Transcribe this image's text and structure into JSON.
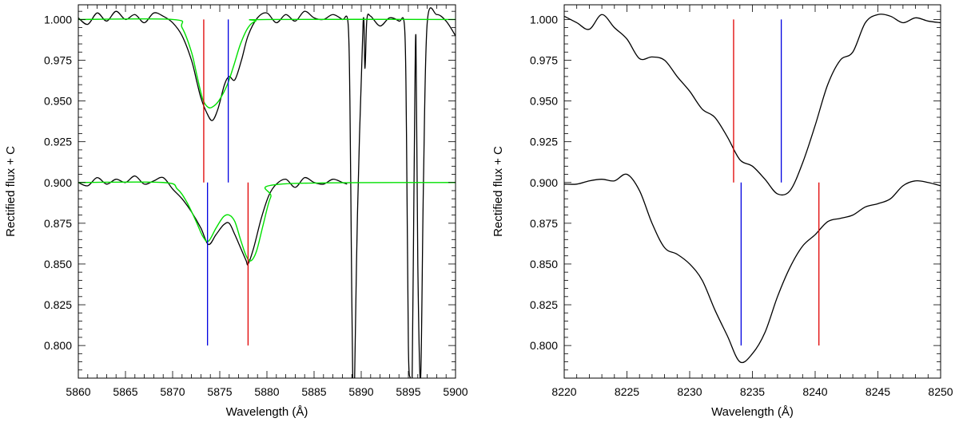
{
  "chart_data": [
    {
      "type": "line",
      "panel": "left",
      "xlabel": "Wavelength (Å)",
      "ylabel": "Rectified flux + C",
      "xlim": [
        5860,
        5900
      ],
      "ylim": [
        0.78,
        1.009
      ],
      "xticks": [
        5860,
        5865,
        5870,
        5875,
        5880,
        5885,
        5890,
        5895,
        5900
      ],
      "xtick_labels": [
        "5860",
        "5865",
        "5870",
        "5875",
        "5880",
        "5885",
        "5890",
        "5895",
        "5900"
      ],
      "yticks": [
        0.8,
        0.825,
        0.85,
        0.875,
        0.9,
        0.925,
        0.95,
        0.975,
        1.0
      ],
      "ytick_labels": [
        "0.800",
        "0.825",
        "0.850",
        "0.875",
        "0.900",
        "0.925",
        "0.950",
        "0.975",
        "1.000"
      ],
      "grid": false,
      "series": [
        {
          "color": "#000000",
          "kind": "observed",
          "x": [
            5860,
            5861,
            5862,
            5863,
            5864,
            5865,
            5866,
            5867,
            5868,
            5869,
            5870,
            5871,
            5872,
            5872.6,
            5873,
            5873.6,
            5874.2,
            5874.8,
            5875.5,
            5876,
            5876.6,
            5877.3,
            5878,
            5879,
            5880,
            5881,
            5882,
            5883,
            5884,
            5885,
            5886,
            5887,
            5888,
            5888.6,
            5888.8,
            5888.95,
            5889.1,
            5889.3,
            5889.6,
            5890.2,
            5890.4,
            5890.6,
            5891,
            5892,
            5893,
            5894,
            5894.6,
            5894.8,
            5895,
            5895.2,
            5895.4,
            5895.6,
            5895.8,
            5896,
            5896.3,
            5896.6,
            5897,
            5898,
            5899,
            5900
          ],
          "y": [
            1.001,
            0.997,
            1.004,
            0.999,
            1.005,
            1.0,
            1.003,
            0.998,
            1.004,
            1.002,
            0.998,
            0.99,
            0.975,
            0.961,
            0.952,
            0.943,
            0.938,
            0.945,
            0.96,
            0.965,
            0.963,
            0.975,
            0.99,
            1.001,
            1.004,
            0.998,
            1.003,
            0.999,
            1.005,
            1.001,
            1.0,
            1.003,
            1.0,
            0.998,
            0.95,
            0.86,
            0.78,
            0.78,
            0.88,
            0.998,
            0.97,
            1.0,
            1.002,
            0.996,
            1.001,
            0.999,
            0.995,
            0.93,
            0.8,
            0.78,
            0.78,
            0.9,
            0.99,
            0.85,
            0.78,
            0.9,
            0.998,
            1.003,
            0.999,
            0.99
          ]
        },
        {
          "color": "#00e000",
          "kind": "model",
          "x": [
            5860,
            5870,
            5871,
            5872,
            5872.6,
            5873.2,
            5873.8,
            5874.4,
            5875,
            5875.8,
            5876.5,
            5877.2,
            5878,
            5878.8,
            5880,
            5900
          ],
          "y": [
            1.0,
            1.0,
            0.995,
            0.98,
            0.965,
            0.951,
            0.946,
            0.947,
            0.951,
            0.96,
            0.972,
            0.985,
            0.995,
            0.999,
            1.0,
            1.0
          ]
        },
        {
          "color": "#000000",
          "kind": "observed",
          "x": [
            5860,
            5861,
            5862,
            5863,
            5864,
            5865,
            5866,
            5867,
            5868,
            5869,
            5870,
            5871,
            5872,
            5873,
            5873.8,
            5874.6,
            5875.4,
            5876,
            5876.6,
            5877.2,
            5877.8,
            5878,
            5878.6,
            5879.4,
            5880.2,
            5881,
            5882,
            5883,
            5884,
            5885,
            5886,
            5887,
            5888,
            5888.5
          ],
          "y": [
            0.9,
            0.898,
            0.903,
            0.899,
            0.902,
            0.9,
            0.904,
            0.899,
            0.901,
            0.903,
            0.896,
            0.89,
            0.882,
            0.872,
            0.862,
            0.868,
            0.874,
            0.875,
            0.868,
            0.86,
            0.852,
            0.85,
            0.86,
            0.878,
            0.892,
            0.899,
            0.902,
            0.897,
            0.903,
            0.9,
            0.899,
            0.902,
            0.9,
            0.899
          ]
        },
        {
          "color": "#00e000",
          "kind": "model",
          "x": [
            5860,
            5869,
            5870.5,
            5871.5,
            5872.5,
            5873.2,
            5873.8,
            5874.6,
            5875.4,
            5876,
            5876.6,
            5877.2,
            5877.8,
            5878.3,
            5878.9,
            5879.6,
            5880.4,
            5881.5,
            5900
          ],
          "y": [
            0.9,
            0.9,
            0.896,
            0.888,
            0.876,
            0.867,
            0.864,
            0.872,
            0.879,
            0.88,
            0.876,
            0.865,
            0.855,
            0.852,
            0.858,
            0.874,
            0.891,
            0.899,
            0.9
          ]
        }
      ],
      "markers": [
        {
          "color": "#e00000",
          "x": 5873.3,
          "y_range": [
            0.9,
            1.0
          ]
        },
        {
          "color": "#0000e0",
          "x": 5875.9,
          "y_range": [
            0.9,
            1.0
          ]
        },
        {
          "color": "#0000e0",
          "x": 5873.7,
          "y_range": [
            0.8,
            0.9
          ]
        },
        {
          "color": "#e00000",
          "x": 5878.0,
          "y_range": [
            0.8,
            0.9
          ]
        }
      ]
    },
    {
      "type": "line",
      "panel": "right",
      "xlabel": "Wavelength (Å)",
      "ylabel": "Rectified flux + C",
      "xlim": [
        8220,
        8250
      ],
      "ylim": [
        0.78,
        1.009
      ],
      "xticks": [
        8220,
        8225,
        8230,
        8235,
        8240,
        8245,
        8250
      ],
      "xtick_labels": [
        "8220",
        "8225",
        "8230",
        "8235",
        "8240",
        "8245",
        "8250"
      ],
      "yticks": [
        0.8,
        0.825,
        0.85,
        0.875,
        0.9,
        0.925,
        0.95,
        0.975,
        1.0
      ],
      "ytick_labels": [
        "0.800",
        "0.825",
        "0.850",
        "0.875",
        "0.900",
        "0.925",
        "0.950",
        "0.975",
        "1.000"
      ],
      "grid": false,
      "series": [
        {
          "color": "#000000",
          "kind": "observed",
          "x": [
            8220,
            8221,
            8222,
            8223,
            8224,
            8225,
            8226,
            8227,
            8228,
            8229,
            8230,
            8231,
            8232,
            8233,
            8234,
            8235,
            8236,
            8237,
            8238,
            8239,
            8240,
            8241,
            8242,
            8243,
            8244,
            8245,
            8246,
            8247,
            8248,
            8249,
            8250
          ],
          "y": [
            1.002,
            0.998,
            0.994,
            1.003,
            0.995,
            0.988,
            0.976,
            0.977,
            0.975,
            0.965,
            0.956,
            0.945,
            0.94,
            0.928,
            0.914,
            0.91,
            0.902,
            0.893,
            0.895,
            0.912,
            0.935,
            0.96,
            0.975,
            0.98,
            0.998,
            1.003,
            1.002,
            0.998,
            1.001,
            0.999,
            0.998
          ]
        },
        {
          "color": "#000000",
          "kind": "observed",
          "x": [
            8220,
            8221,
            8222,
            8223,
            8224,
            8225,
            8226,
            8227,
            8228,
            8229,
            8230,
            8231,
            8232,
            8233,
            8234,
            8235,
            8236,
            8237,
            8238,
            8239,
            8240,
            8241,
            8242,
            8243,
            8244,
            8245,
            8246,
            8247,
            8248,
            8249,
            8250
          ],
          "y": [
            0.899,
            0.899,
            0.901,
            0.902,
            0.901,
            0.905,
            0.895,
            0.875,
            0.86,
            0.856,
            0.85,
            0.84,
            0.822,
            0.806,
            0.79,
            0.795,
            0.808,
            0.83,
            0.848,
            0.861,
            0.868,
            0.876,
            0.878,
            0.88,
            0.885,
            0.887,
            0.89,
            0.898,
            0.901,
            0.9,
            0.898
          ]
        }
      ],
      "markers": [
        {
          "color": "#e00000",
          "x": 8233.5,
          "y_range": [
            0.9,
            1.0
          ]
        },
        {
          "color": "#0000e0",
          "x": 8237.3,
          "y_range": [
            0.9,
            1.0
          ]
        },
        {
          "color": "#0000e0",
          "x": 8234.1,
          "y_range": [
            0.8,
            0.9
          ]
        },
        {
          "color": "#e00000",
          "x": 8240.3,
          "y_range": [
            0.8,
            0.9
          ]
        }
      ]
    }
  ]
}
